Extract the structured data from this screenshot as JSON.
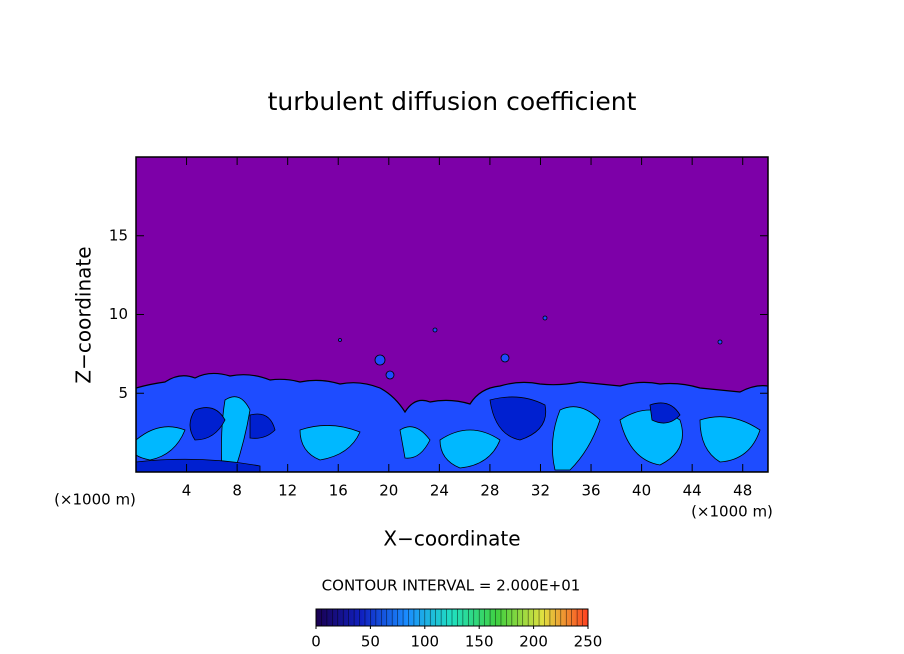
{
  "chart_data": {
    "type": "contour",
    "title": "turbulent diffusion coefficient",
    "x_label": "X−coordinate",
    "y_label": "Z−coordinate",
    "x_unit_left": "(×1000 m)",
    "x_unit_right": "(×1000 m)",
    "xlim": [
      0,
      50
    ],
    "xticks": [
      4,
      8,
      12,
      16,
      20,
      24,
      28,
      32,
      36,
      40,
      44,
      48
    ],
    "ylim": [
      0,
      20
    ],
    "yticks": [
      5,
      10,
      15
    ],
    "annotation": "CONTOUR INTERVAL = 2.000E+01",
    "colorbar": {
      "lim": [
        0,
        250
      ],
      "ticks": [
        0,
        50,
        100,
        150,
        200,
        250
      ],
      "colors": [
        "#1a0050",
        "#1020c0",
        "#1a8cff",
        "#20e0c0",
        "#40d040",
        "#e0e040",
        "#ff4020"
      ]
    }
  }
}
